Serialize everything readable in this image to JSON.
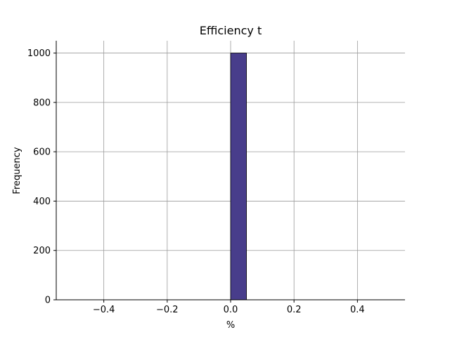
{
  "chart_data": {
    "type": "bar",
    "title": "Efficiency t",
    "xlabel": "%",
    "ylabel": "Frequency",
    "xlim": [
      -0.55,
      0.55
    ],
    "ylim": [
      0,
      1050
    ],
    "xticks": [
      -0.4,
      -0.2,
      0.0,
      0.2,
      0.4
    ],
    "xtick_labels": [
      "−0.4",
      "−0.2",
      "0.0",
      "0.2",
      "0.4"
    ],
    "yticks": [
      0,
      200,
      400,
      600,
      800,
      1000
    ],
    "ytick_labels": [
      "0",
      "200",
      "400",
      "600",
      "800",
      "1000"
    ],
    "grid": true,
    "bins": [
      {
        "x0": -0.5,
        "x1": -0.45,
        "value": 0
      },
      {
        "x0": -0.45,
        "x1": -0.4,
        "value": 0
      },
      {
        "x0": -0.4,
        "x1": -0.35,
        "value": 0
      },
      {
        "x0": -0.35,
        "x1": -0.3,
        "value": 0
      },
      {
        "x0": -0.3,
        "x1": -0.25,
        "value": 0
      },
      {
        "x0": -0.25,
        "x1": -0.2,
        "value": 0
      },
      {
        "x0": -0.2,
        "x1": -0.15,
        "value": 0
      },
      {
        "x0": -0.15,
        "x1": -0.1,
        "value": 0
      },
      {
        "x0": -0.1,
        "x1": -0.05,
        "value": 0
      },
      {
        "x0": -0.05,
        "x1": 0.0,
        "value": 0
      },
      {
        "x0": 0.0,
        "x1": 0.05,
        "value": 1000
      },
      {
        "x0": 0.05,
        "x1": 0.1,
        "value": 0
      },
      {
        "x0": 0.1,
        "x1": 0.15,
        "value": 0
      },
      {
        "x0": 0.15,
        "x1": 0.2,
        "value": 0
      },
      {
        "x0": 0.2,
        "x1": 0.25,
        "value": 0
      },
      {
        "x0": 0.25,
        "x1": 0.3,
        "value": 0
      },
      {
        "x0": 0.3,
        "x1": 0.35,
        "value": 0
      },
      {
        "x0": 0.35,
        "x1": 0.4,
        "value": 0
      },
      {
        "x0": 0.4,
        "x1": 0.45,
        "value": 0
      },
      {
        "x0": 0.45,
        "x1": 0.5,
        "value": 0
      }
    ],
    "bar_color": "#483D8B",
    "bar_edge_color": "#000000"
  }
}
